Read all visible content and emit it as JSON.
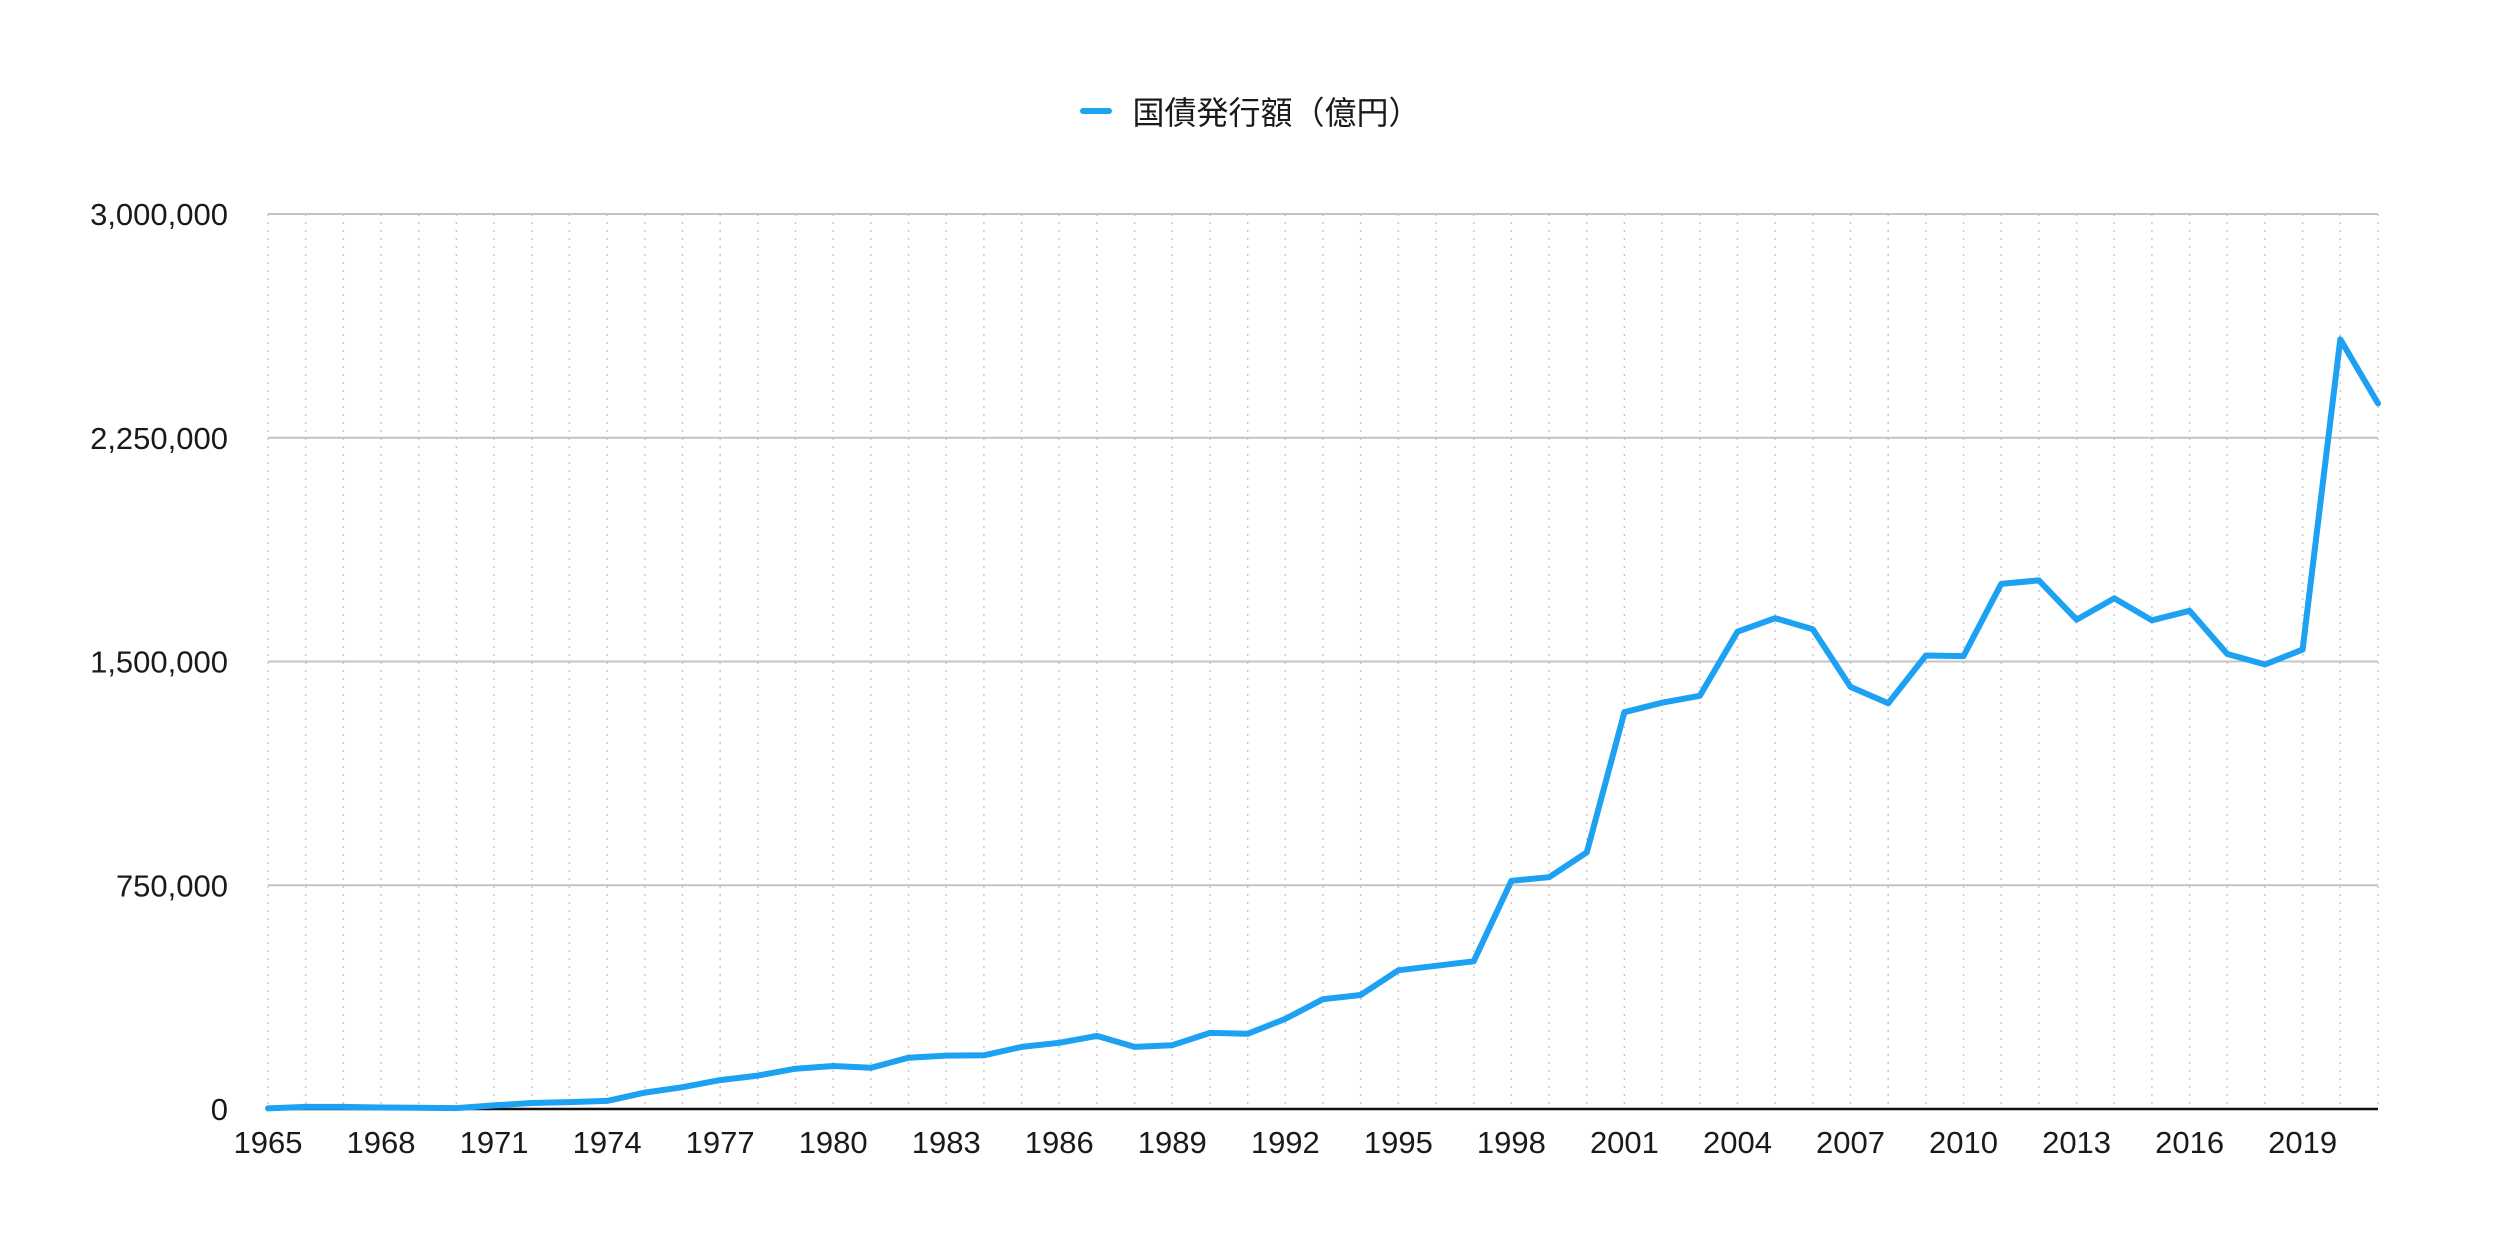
{
  "chart_data": {
    "type": "line",
    "title": "",
    "xlabel": "",
    "ylabel": "",
    "legend_position": "top-center",
    "grid": true,
    "ylim": [
      0,
      3000000
    ],
    "yticks": [
      0,
      750000,
      1500000,
      2250000,
      3000000
    ],
    "ytick_labels": [
      "0",
      "750,000",
      "1,500,000",
      "2,250,000",
      "3,000,000"
    ],
    "xlim": [
      1965,
      2021
    ],
    "xticks": [
      1965,
      1968,
      1971,
      1974,
      1977,
      1980,
      1983,
      1986,
      1989,
      1992,
      1995,
      1998,
      2001,
      2004,
      2007,
      2010,
      2013,
      2016,
      2019
    ],
    "xtick_labels": [
      "1965",
      "1968",
      "1971",
      "1974",
      "1977",
      "1980",
      "1983",
      "1986",
      "1989",
      "1992",
      "1995",
      "1998",
      "2001",
      "2004",
      "2007",
      "2010",
      "2013",
      "2016",
      "2019"
    ],
    "x": [
      1965,
      1966,
      1967,
      1968,
      1969,
      1970,
      1971,
      1972,
      1973,
      1974,
      1975,
      1976,
      1977,
      1978,
      1979,
      1980,
      1981,
      1982,
      1983,
      1984,
      1985,
      1986,
      1987,
      1988,
      1989,
      1990,
      1991,
      1992,
      1993,
      1994,
      1995,
      1996,
      1997,
      1998,
      1999,
      2000,
      2001,
      2002,
      2003,
      2004,
      2005,
      2006,
      2007,
      2008,
      2009,
      2010,
      2011,
      2012,
      2013,
      2014,
      2015,
      2016,
      2017,
      2018,
      2019,
      2020,
      2021
    ],
    "series": [
      {
        "name": "国債発行額（億円）",
        "color": "#1da1f2",
        "values": [
          2000,
          7000,
          7000,
          5000,
          4000,
          3000,
          12000,
          20000,
          23000,
          27000,
          55000,
          73000,
          97000,
          112000,
          135000,
          144000,
          138000,
          172000,
          179000,
          180000,
          208000,
          222000,
          245000,
          208000,
          214000,
          255000,
          252000,
          302000,
          368000,
          382000,
          465000,
          480000,
          495000,
          765000,
          777000,
          860000,
          1330000,
          1362000,
          1385000,
          1600000,
          1645000,
          1608000,
          1415000,
          1360000,
          1520000,
          1518000,
          1760000,
          1772000,
          1640000,
          1712000,
          1638000,
          1670000,
          1525000,
          1490000,
          1540000,
          2580000,
          2365000
        ]
      }
    ]
  }
}
